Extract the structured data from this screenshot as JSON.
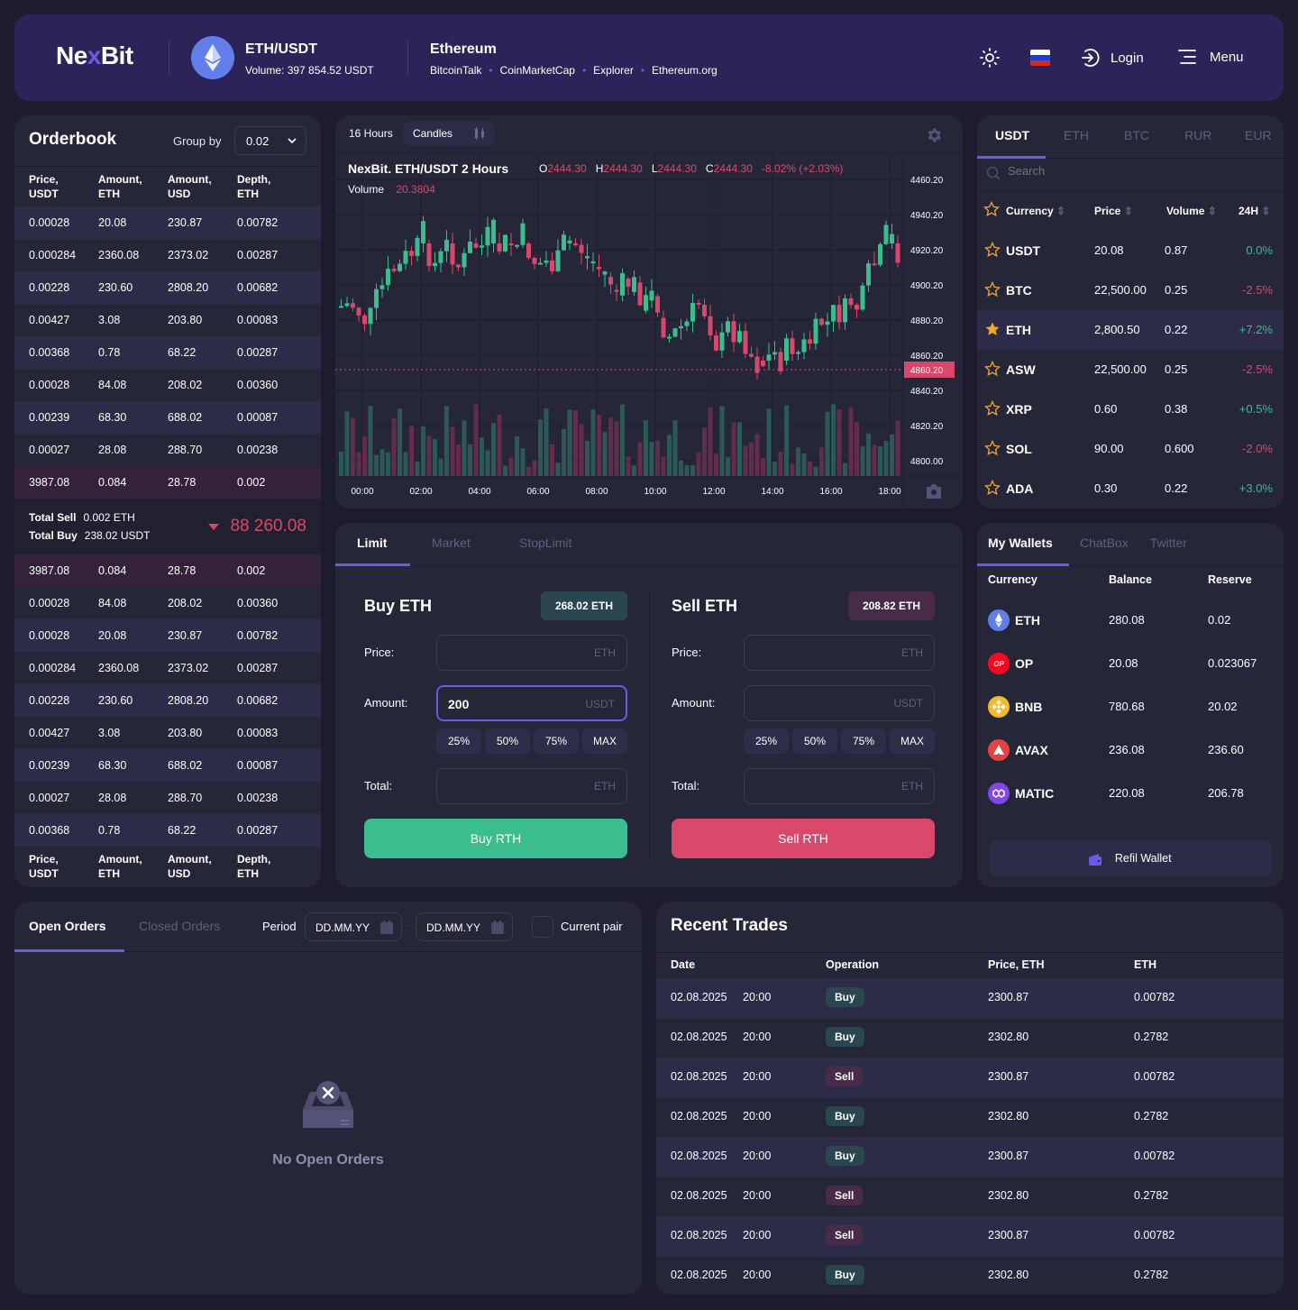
{
  "header": {
    "logo_a": "Ne",
    "logo_x": "x",
    "logo_b": "Bit",
    "pair": "ETH/USDT",
    "volume": "Volume: 397 854.52  USDT",
    "coin_name": "Ethereum",
    "links": [
      "BitcoinTalk",
      "CoinMarketCap",
      "Explorer",
      "Ethereum.org"
    ],
    "login": "Login",
    "menu": "Menu"
  },
  "orderbook": {
    "title": "Orderbook",
    "group_by_label": "Group by",
    "group_by_value": "0.02",
    "columns": [
      [
        "Price,",
        "USDT"
      ],
      [
        "Amount,",
        "ETH"
      ],
      [
        "Amount,",
        "USD"
      ],
      [
        "Depth,",
        "ETH"
      ]
    ],
    "asks": [
      [
        "0.00028",
        "20.08",
        "230.87",
        "0.00782"
      ],
      [
        "0.000284",
        "2360.08",
        "2373.02",
        "0.00287"
      ],
      [
        "0.00228",
        "230.60",
        "2808.20",
        "0.00682"
      ],
      [
        "0.00427",
        "3.08",
        "203.80",
        "0.00083"
      ],
      [
        "0.00368",
        "0.78",
        "68.22",
        "0.00287"
      ],
      [
        "0.00028",
        "84.08",
        "208.02",
        "0.00360"
      ],
      [
        "0.00239",
        "68.30",
        "688.02",
        "0.00087"
      ],
      [
        "0.00027",
        "28.08",
        "288.70",
        "0.00238"
      ],
      [
        "3987.08",
        "0.084",
        "28.78",
        "0.002"
      ]
    ],
    "total_sell_label": "Total Sell",
    "total_sell_value": "0.002 ETH",
    "total_buy_label": "Total Buy",
    "total_buy_value": "238.02  USDT",
    "last_price": "88 260.08",
    "bids": [
      [
        "3987.08",
        "0.084",
        "28.78",
        "0.002"
      ],
      [
        "0.00028",
        "84.08",
        "208.02",
        "0.00360"
      ],
      [
        "0.00028",
        "20.08",
        "230.87",
        "0.00782"
      ],
      [
        "0.000284",
        "2360.08",
        "2373.02",
        "0.00287"
      ],
      [
        "0.00228",
        "230.60",
        "2808.20",
        "0.00682"
      ],
      [
        "0.00427",
        "3.08",
        "203.80",
        "0.00083"
      ],
      [
        "0.00239",
        "68.30",
        "688.02",
        "0.00087"
      ],
      [
        "0.00027",
        "28.08",
        "288.70",
        "0.00238"
      ],
      [
        "0.00368",
        "0.78",
        "68.22",
        "0.00287"
      ]
    ]
  },
  "chart": {
    "interval": "16 Hours",
    "type": "Candles",
    "title": "NexBit. ETH/USDT 2 Hours",
    "o_label": "O",
    "o": "2444.30",
    "h_label": "H",
    "h": "2444.30",
    "l_label": "L",
    "l": "2444.30",
    "c_label": "C",
    "c": "2444.30",
    "change": "-8.02% (+2.03%)",
    "volume_label": "Volume",
    "volume": "20.3804",
    "y_ticks": [
      "4460.20",
      "4940.20",
      "4920.20",
      "4900.20",
      "4880.20",
      "4860.20",
      "4840.20",
      "4820.20",
      "4800.00"
    ],
    "current_price": "4860.20",
    "x_ticks": [
      "00:00",
      "02:00",
      "04:00",
      "06:00",
      "08:00",
      "10:00",
      "12:00",
      "14:00",
      "16:00",
      "18:00"
    ]
  },
  "markets": {
    "tabs": [
      "USDT",
      "ETH",
      "BTC",
      "RUR",
      "EUR"
    ],
    "search_placeholder": "Search",
    "columns": [
      "Currency",
      "Price",
      "Volume",
      "24H"
    ],
    "rows": [
      {
        "sym": "USDT",
        "price": "20.08",
        "vol": "0.87",
        "chg": "0.0%",
        "up": true,
        "fav": false
      },
      {
        "sym": "BTC",
        "price": "22,500.00",
        "vol": "0.25",
        "chg": "-2.5%",
        "up": false,
        "fav": false
      },
      {
        "sym": "ETH",
        "price": "2,800.50",
        "vol": "0.22",
        "chg": "+7.2%",
        "up": true,
        "fav": true
      },
      {
        "sym": "ASW",
        "price": "22,500.00",
        "vol": "0.25",
        "chg": "-2.5%",
        "up": false,
        "fav": false
      },
      {
        "sym": "XRP",
        "price": "0.60",
        "vol": "0.38",
        "chg": "+0.5%",
        "up": true,
        "fav": false
      },
      {
        "sym": "SOL",
        "price": "90.00",
        "vol": "0.600",
        "chg": "-2.0%",
        "up": false,
        "fav": false
      },
      {
        "sym": "ADA",
        "price": "0.30",
        "vol": "0.22",
        "chg": "+3.0%",
        "up": true,
        "fav": false
      }
    ]
  },
  "trade": {
    "tabs": [
      "Limit",
      "Market",
      "StopLimit"
    ],
    "buy": {
      "title": "Buy ETH",
      "balance": "268.02 ETH",
      "price_label": "Price:",
      "price_unit": "ETH",
      "amount_label": "Amount:",
      "amount_value": "200",
      "amount_unit": "USDT",
      "total_label": "Total:",
      "total_unit": "ETH",
      "button": "Buy RTH"
    },
    "sell": {
      "title": "Sell ETH",
      "balance": "208.82 ETH",
      "price_label": "Price:",
      "price_unit": "ETH",
      "amount_label": "Amount:",
      "amount_value": "",
      "amount_unit": "USDT",
      "total_label": "Total:",
      "total_unit": "ETH",
      "button": "Sell RTH"
    },
    "pct": [
      "25%",
      "50%",
      "75%",
      "MAX"
    ]
  },
  "wallets": {
    "tabs": [
      "My Wallets",
      "ChatBox",
      "Twitter"
    ],
    "columns": [
      "Currency",
      "Balance",
      "Reserve"
    ],
    "rows": [
      {
        "sym": "ETH",
        "bal": "280.08",
        "res": "0.02",
        "color": "#627eea"
      },
      {
        "sym": "OP",
        "bal": "20.08",
        "res": "0.023067",
        "color": "#ff0420"
      },
      {
        "sym": "BNB",
        "bal": "780.68",
        "res": "20.02",
        "color": "#f3ba2f"
      },
      {
        "sym": "AVAX",
        "bal": "236.08",
        "res": "236.60",
        "color": "#e84142"
      },
      {
        "sym": "MATIC",
        "bal": "220.08",
        "res": "206.78",
        "color": "#8247e5"
      }
    ],
    "refill": "Refil Wallet"
  },
  "orders": {
    "tabs": [
      "Open Orders",
      "Closed Orders"
    ],
    "period_label": "Period",
    "date_from_placeholder": "DD.MM.YY",
    "date_to_placeholder": "DD.MM.YY",
    "current_pair": "Current pair",
    "empty": "No Open Orders"
  },
  "trades": {
    "title": "Recent Trades",
    "columns": [
      "Date",
      "Operation",
      "Price, ETH",
      "ETH"
    ],
    "rows": [
      {
        "date": "02.08.2025",
        "time": "20:00",
        "op": "Buy",
        "price": "2300.87",
        "eth": "0.00782"
      },
      {
        "date": "02.08.2025",
        "time": "20:00",
        "op": "Buy",
        "price": "2302.80",
        "eth": "0.2782"
      },
      {
        "date": "02.08.2025",
        "time": "20:00",
        "op": "Sell",
        "price": "2300.87",
        "eth": "0.00782"
      },
      {
        "date": "02.08.2025",
        "time": "20:00",
        "op": "Buy",
        "price": "2302.80",
        "eth": "0.2782"
      },
      {
        "date": "02.08.2025",
        "time": "20:00",
        "op": "Buy",
        "price": "2300.87",
        "eth": "0.00782"
      },
      {
        "date": "02.08.2025",
        "time": "20:00",
        "op": "Sell",
        "price": "2302.80",
        "eth": "0.2782"
      },
      {
        "date": "02.08.2025",
        "time": "20:00",
        "op": "Sell",
        "price": "2300.87",
        "eth": "0.00782"
      },
      {
        "date": "02.08.2025",
        "time": "20:00",
        "op": "Buy",
        "price": "2302.80",
        "eth": "0.2782"
      }
    ]
  },
  "colors": {
    "accent": "#6c5ae6",
    "up": "#3bbd8e",
    "down": "#d9486a",
    "panel": "#262639",
    "bg": "#1d1b2e",
    "header": "#2c2458"
  }
}
